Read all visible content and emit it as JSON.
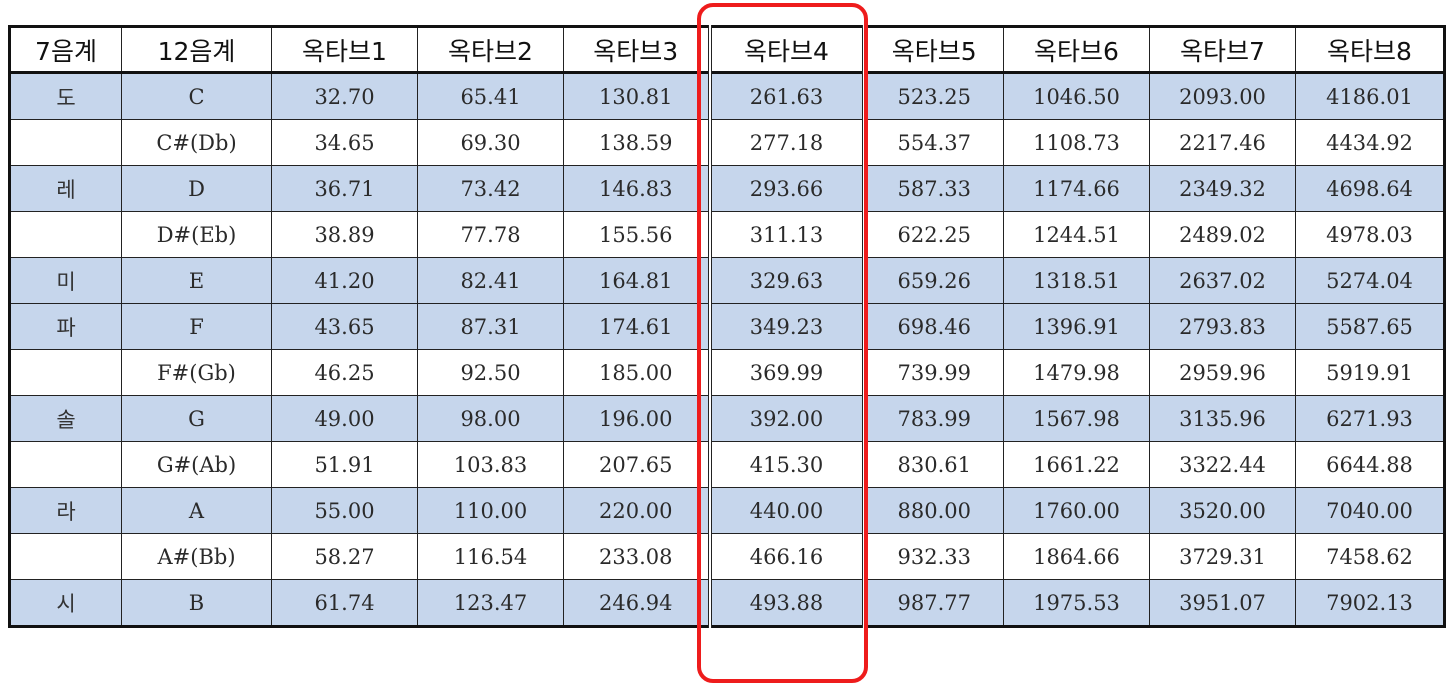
{
  "table": {
    "headers": [
      "7음계",
      "12음계",
      "옥타브1",
      "옥타브2",
      "옥타브3",
      "옥타브4",
      "옥타브5",
      "옥타브6",
      "옥타브7",
      "옥타브8"
    ],
    "rows": [
      {
        "solfege": "도",
        "note": "C",
        "values": [
          "32.70",
          "65.41",
          "130.81",
          "261.63",
          "523.25",
          "1046.50",
          "2093.00",
          "4186.01"
        ]
      },
      {
        "solfege": "",
        "note": "C#(Db)",
        "values": [
          "34.65",
          "69.30",
          "138.59",
          "277.18",
          "554.37",
          "1108.73",
          "2217.46",
          "4434.92"
        ]
      },
      {
        "solfege": "레",
        "note": "D",
        "values": [
          "36.71",
          "73.42",
          "146.83",
          "293.66",
          "587.33",
          "1174.66",
          "2349.32",
          "4698.64"
        ]
      },
      {
        "solfege": "",
        "note": "D#(Eb)",
        "values": [
          "38.89",
          "77.78",
          "155.56",
          "311.13",
          "622.25",
          "1244.51",
          "2489.02",
          "4978.03"
        ]
      },
      {
        "solfege": "미",
        "note": "E",
        "values": [
          "41.20",
          "82.41",
          "164.81",
          "329.63",
          "659.26",
          "1318.51",
          "2637.02",
          "5274.04"
        ]
      },
      {
        "solfege": "파",
        "note": "F",
        "values": [
          "43.65",
          "87.31",
          "174.61",
          "349.23",
          "698.46",
          "1396.91",
          "2793.83",
          "5587.65"
        ]
      },
      {
        "solfege": "",
        "note": "F#(Gb)",
        "values": [
          "46.25",
          "92.50",
          "185.00",
          "369.99",
          "739.99",
          "1479.98",
          "2959.96",
          "5919.91"
        ]
      },
      {
        "solfege": "솔",
        "note": "G",
        "values": [
          "49.00",
          "98.00",
          "196.00",
          "392.00",
          "783.99",
          "1567.98",
          "3135.96",
          "6271.93"
        ]
      },
      {
        "solfege": "",
        "note": "G#(Ab)",
        "values": [
          "51.91",
          "103.83",
          "207.65",
          "415.30",
          "830.61",
          "1661.22",
          "3322.44",
          "6644.88"
        ]
      },
      {
        "solfege": "라",
        "note": "A",
        "values": [
          "55.00",
          "110.00",
          "220.00",
          "440.00",
          "880.00",
          "1760.00",
          "3520.00",
          "7040.00"
        ]
      },
      {
        "solfege": "",
        "note": "A#(Bb)",
        "values": [
          "58.27",
          "116.54",
          "233.08",
          "466.16",
          "932.33",
          "1864.66",
          "3729.31",
          "7458.62"
        ]
      },
      {
        "solfege": "시",
        "note": "B",
        "values": [
          "61.74",
          "123.47",
          "246.94",
          "493.88",
          "987.77",
          "1975.53",
          "3951.07",
          "7902.13"
        ]
      }
    ]
  },
  "colors": {
    "shaded_row": "#c6d6ec",
    "highlight": "#ee1c1c"
  }
}
